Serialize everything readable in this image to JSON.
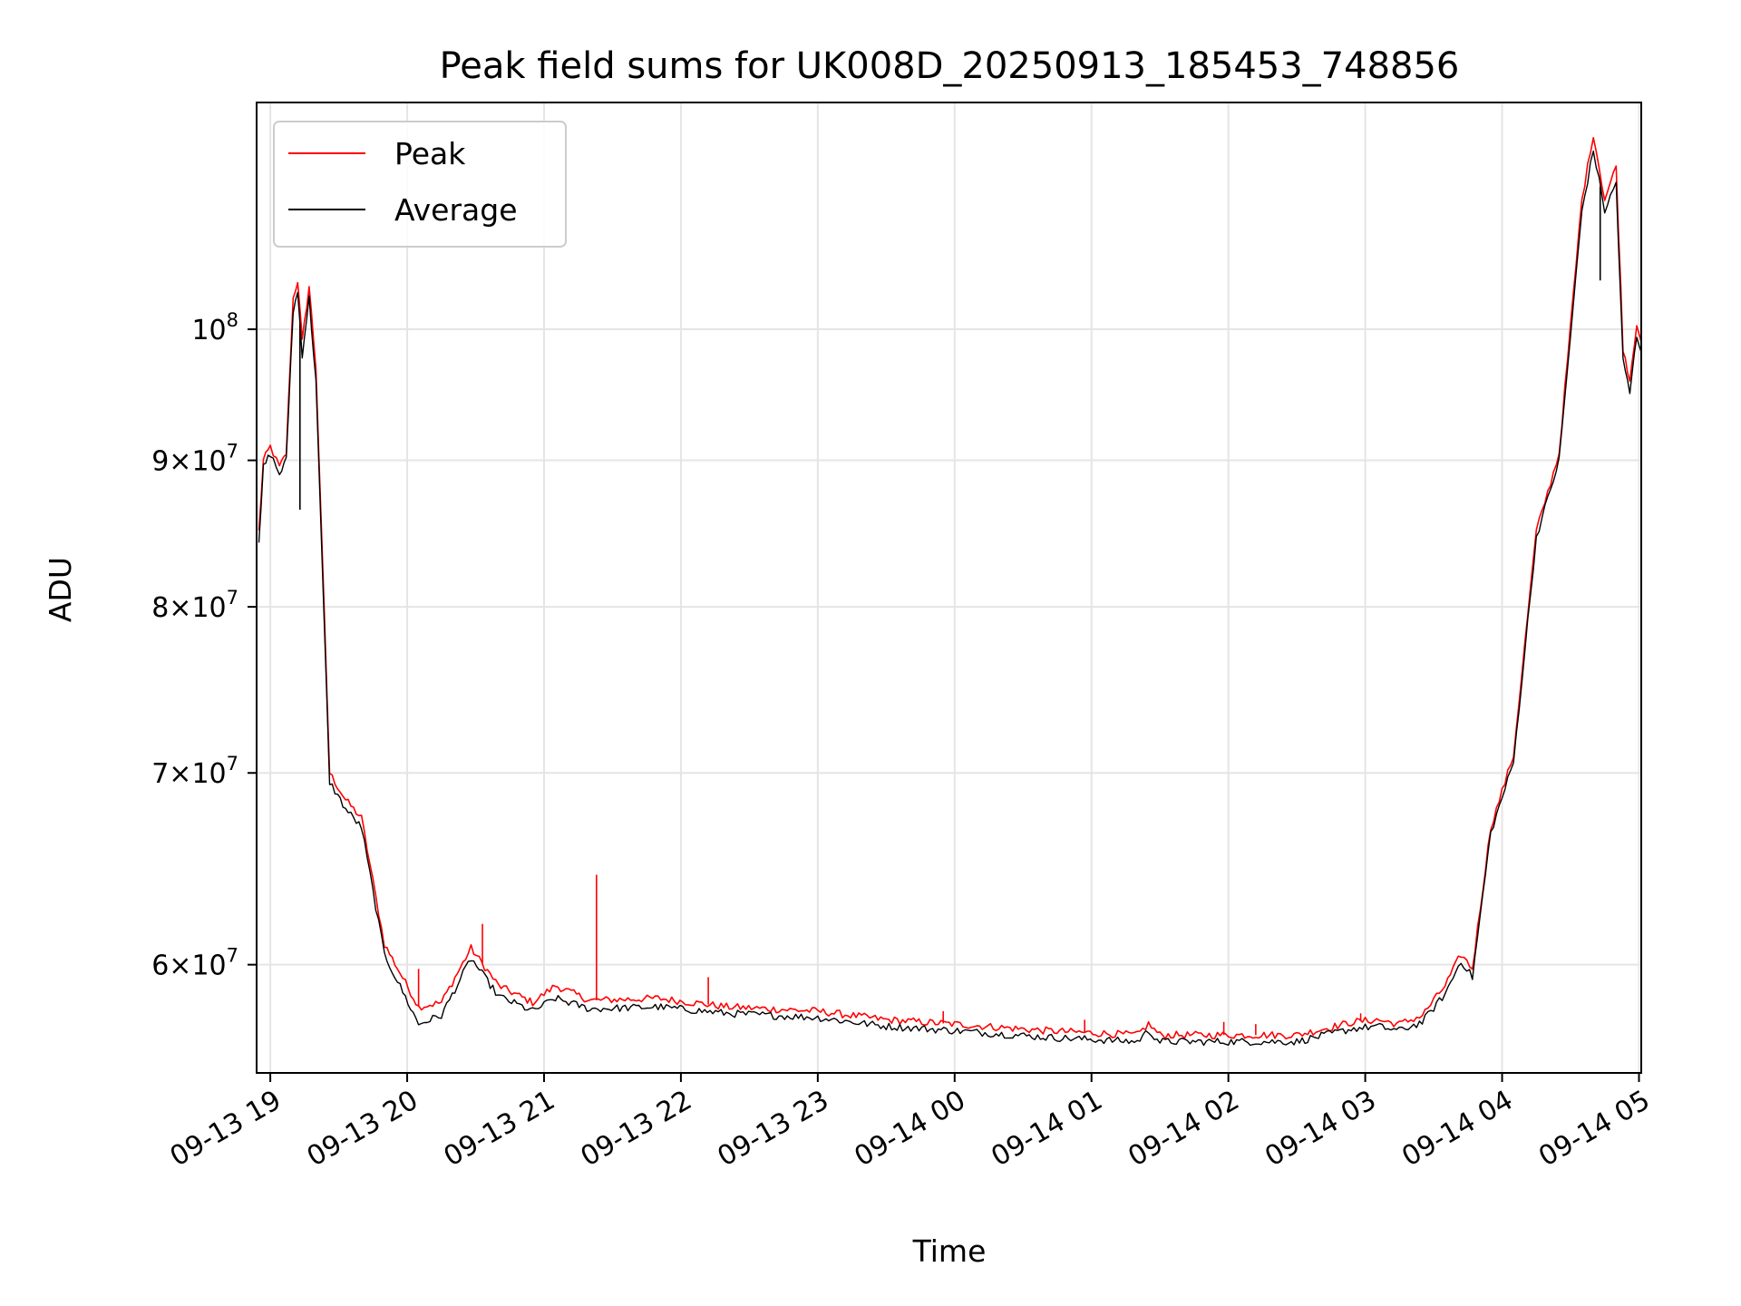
{
  "chart_data": {
    "type": "line",
    "title": "Peak field sums for UK008D_20250913_185453_748856",
    "xlabel": "Time",
    "ylabel": "ADU",
    "yscale": "log",
    "grid": true,
    "legend_position": "top-left",
    "xlim": [
      "2025-09-13 18:54",
      "2025-09-14 05:01"
    ],
    "ylim": [
      55000000,
      120000000
    ],
    "x_ticks": [
      {
        "value": "2025-09-13 19:00",
        "label": "09-13 19"
      },
      {
        "value": "2025-09-13 20:00",
        "label": "09-13 20"
      },
      {
        "value": "2025-09-13 21:00",
        "label": "09-13 21"
      },
      {
        "value": "2025-09-13 22:00",
        "label": "09-13 22"
      },
      {
        "value": "2025-09-13 23:00",
        "label": "09-13 23"
      },
      {
        "value": "2025-09-14 00:00",
        "label": "09-14 00"
      },
      {
        "value": "2025-09-14 01:00",
        "label": "09-14 01"
      },
      {
        "value": "2025-09-14 02:00",
        "label": "09-14 02"
      },
      {
        "value": "2025-09-14 03:00",
        "label": "09-14 03"
      },
      {
        "value": "2025-09-14 04:00",
        "label": "09-14 04"
      },
      {
        "value": "2025-09-14 05:00",
        "label": "09-14 05"
      }
    ],
    "y_ticks": [
      {
        "value": 60000000,
        "mantissa": "6",
        "base": "10",
        "exp": "7"
      },
      {
        "value": 70000000,
        "mantissa": "7",
        "base": "10",
        "exp": "7"
      },
      {
        "value": 80000000,
        "mantissa": "8",
        "base": "10",
        "exp": "7"
      },
      {
        "value": 90000000,
        "mantissa": "9",
        "base": "10",
        "exp": "7"
      },
      {
        "value": 100000000,
        "mantissa": "",
        "base": "10",
        "exp": "8"
      }
    ],
    "series": [
      {
        "name": "Peak",
        "color": "#ff0000",
        "points": [
          [
            "2025-09-13 18:55",
            85000000
          ],
          [
            "2025-09-13 18:57",
            90000000
          ],
          [
            "2025-09-13 19:00",
            91000000
          ],
          [
            "2025-09-13 19:04",
            89500000
          ],
          [
            "2025-09-13 19:07",
            90500000
          ],
          [
            "2025-09-13 19:10",
            102500000
          ],
          [
            "2025-09-13 19:12",
            104000000
          ],
          [
            "2025-09-13 19:14",
            99000000
          ],
          [
            "2025-09-13 19:17",
            103500000
          ],
          [
            "2025-09-13 19:20",
            97000000
          ],
          [
            "2025-09-13 19:26",
            70000000
          ],
          [
            "2025-09-13 19:33",
            68500000
          ],
          [
            "2025-09-13 19:40",
            67500000
          ],
          [
            "2025-09-13 19:50",
            61000000
          ],
          [
            "2025-09-13 20:05",
            58000000
          ],
          [
            "2025-09-13 20:15",
            58200000
          ],
          [
            "2025-09-13 20:28",
            60800000
          ],
          [
            "2025-09-13 20:40",
            59000000
          ],
          [
            "2025-09-13 20:55",
            58200000
          ],
          [
            "2025-09-13 21:05",
            59000000
          ],
          [
            "2025-09-13 21:20",
            58300000
          ],
          [
            "2025-09-13 21:50",
            58400000
          ],
          [
            "2025-09-13 22:20",
            58000000
          ],
          [
            "2025-09-13 23:00",
            57800000
          ],
          [
            "2025-09-13 23:30",
            57400000
          ],
          [
            "2025-09-14 00:00",
            57200000
          ],
          [
            "2025-09-14 00:40",
            56900000
          ],
          [
            "2025-09-14 01:20",
            56700000
          ],
          [
            "2025-09-14 01:25",
            57200000
          ],
          [
            "2025-09-14 01:30",
            56700000
          ],
          [
            "2025-09-14 02:30",
            56700000
          ],
          [
            "2025-09-14 02:55",
            57300000
          ],
          [
            "2025-09-14 03:05",
            57400000
          ],
          [
            "2025-09-14 03:15",
            57200000
          ],
          [
            "2025-09-14 03:25",
            57600000
          ],
          [
            "2025-09-14 03:35",
            59000000
          ],
          [
            "2025-09-14 03:42",
            60500000
          ],
          [
            "2025-09-14 03:47",
            59800000
          ],
          [
            "2025-09-14 03:55",
            67000000
          ],
          [
            "2025-09-14 04:05",
            71000000
          ],
          [
            "2025-09-14 04:15",
            85000000
          ],
          [
            "2025-09-14 04:25",
            90500000
          ],
          [
            "2025-09-14 04:35",
            111000000
          ],
          [
            "2025-09-14 04:40",
            117000000
          ],
          [
            "2025-09-14 04:45",
            111000000
          ],
          [
            "2025-09-14 04:50",
            114000000
          ],
          [
            "2025-09-14 04:53",
            98500000
          ],
          [
            "2025-09-14 04:56",
            96000000
          ],
          [
            "2025-09-14 04:59",
            100500000
          ],
          [
            "2025-09-14 05:01",
            99000000
          ]
        ],
        "spikes": [
          [
            "2025-09-13 21:23",
            64500000
          ],
          [
            "2025-09-13 20:33",
            62000000
          ],
          [
            "2025-09-13 20:05",
            59800000
          ],
          [
            "2025-09-13 22:12",
            59400000
          ],
          [
            "2025-09-13 23:55",
            57800000
          ],
          [
            "2025-09-14 00:57",
            57400000
          ],
          [
            "2025-09-14 01:58",
            57300000
          ],
          [
            "2025-09-14 02:12",
            57200000
          ],
          [
            "2025-09-14 02:58",
            57700000
          ]
        ]
      },
      {
        "name": "Average",
        "color": "#000000",
        "points": [
          [
            "2025-09-13 18:55",
            84000000
          ],
          [
            "2025-09-13 18:57",
            89500000
          ],
          [
            "2025-09-13 19:00",
            90500000
          ],
          [
            "2025-09-13 19:04",
            89000000
          ],
          [
            "2025-09-13 19:07",
            90000000
          ],
          [
            "2025-09-13 19:10",
            101500000
          ],
          [
            "2025-09-13 19:12",
            103000000
          ],
          [
            "2025-09-13 19:14",
            98000000
          ],
          [
            "2025-09-13 19:17",
            102500000
          ],
          [
            "2025-09-13 19:20",
            96000000
          ],
          [
            "2025-09-13 19:26",
            69500000
          ],
          [
            "2025-09-13 19:33",
            68000000
          ],
          [
            "2025-09-13 19:40",
            67000000
          ],
          [
            "2025-09-13 19:50",
            60500000
          ],
          [
            "2025-09-13 20:05",
            57200000
          ],
          [
            "2025-09-13 20:15",
            57600000
          ],
          [
            "2025-09-13 20:28",
            60300000
          ],
          [
            "2025-09-13 20:40",
            58500000
          ],
          [
            "2025-09-13 20:55",
            57800000
          ],
          [
            "2025-09-13 21:05",
            58400000
          ],
          [
            "2025-09-13 21:20",
            57900000
          ],
          [
            "2025-09-13 21:50",
            58000000
          ],
          [
            "2025-09-13 22:20",
            57700000
          ],
          [
            "2025-09-13 23:00",
            57500000
          ],
          [
            "2025-09-13 23:30",
            57100000
          ],
          [
            "2025-09-14 00:00",
            56900000
          ],
          [
            "2025-09-14 00:40",
            56600000
          ],
          [
            "2025-09-14 01:20",
            56400000
          ],
          [
            "2025-09-14 01:25",
            56900000
          ],
          [
            "2025-09-14 01:30",
            56400000
          ],
          [
            "2025-09-14 02:30",
            56400000
          ],
          [
            "2025-09-14 02:55",
            57000000
          ],
          [
            "2025-09-14 03:05",
            57100000
          ],
          [
            "2025-09-14 03:15",
            56900000
          ],
          [
            "2025-09-14 03:25",
            57300000
          ],
          [
            "2025-09-14 03:35",
            58600000
          ],
          [
            "2025-09-14 03:42",
            60200000
          ],
          [
            "2025-09-14 03:47",
            59400000
          ],
          [
            "2025-09-14 03:55",
            66700000
          ],
          [
            "2025-09-14 04:05",
            70600000
          ],
          [
            "2025-09-14 04:15",
            84600000
          ],
          [
            "2025-09-14 04:25",
            90000000
          ],
          [
            "2025-09-14 04:35",
            110000000
          ],
          [
            "2025-09-14 04:40",
            115500000
          ],
          [
            "2025-09-14 04:45",
            110000000
          ],
          [
            "2025-09-14 04:50",
            112500000
          ],
          [
            "2025-09-14 04:53",
            97500000
          ],
          [
            "2025-09-14 04:56",
            95000000
          ],
          [
            "2025-09-14 04:59",
            99500000
          ],
          [
            "2025-09-14 05:01",
            98200000
          ]
        ],
        "spikes": [
          [
            "2025-09-13 19:13",
            86500000
          ],
          [
            "2025-09-14 04:43",
            104000000
          ]
        ]
      }
    ]
  }
}
